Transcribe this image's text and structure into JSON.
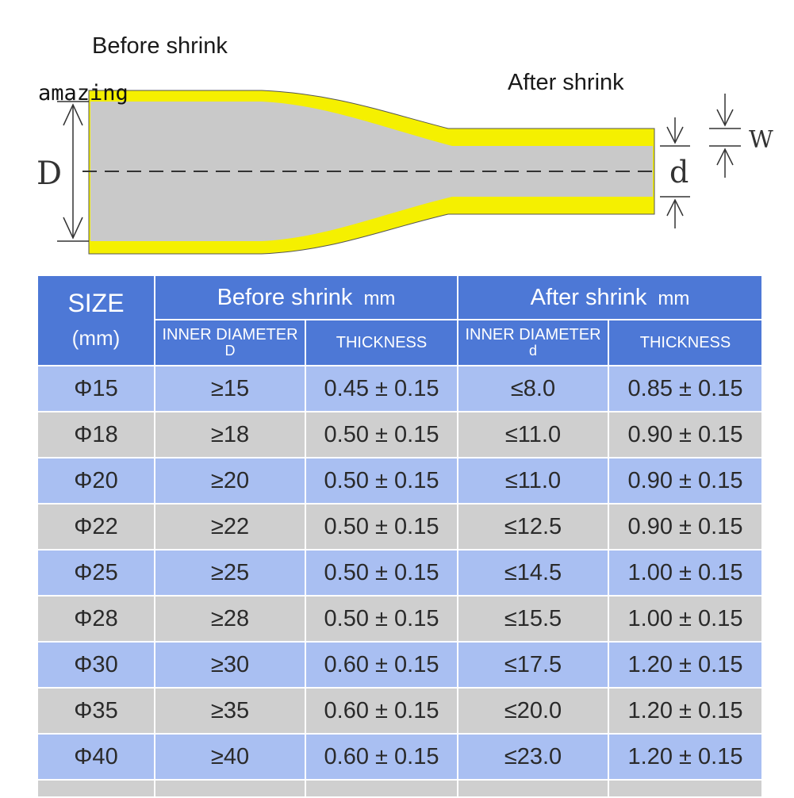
{
  "diagram": {
    "before_label": "Before  shrink",
    "after_label": "After shrink",
    "watermark": "amazing",
    "dim_D": "D",
    "dim_d": "d",
    "dim_w": "W",
    "tube_color": "#f5f000",
    "core_color": "#c9c9c9"
  },
  "table": {
    "header": {
      "size": "SIZE",
      "size_unit": "(mm)",
      "before": "Before  shrink",
      "before_unit": "mm",
      "after": "After shrink",
      "after_unit": "mm",
      "inner_diameter": "INNER DIAMETER",
      "inner_D": "D",
      "inner_d": "d",
      "thickness": "THICKNESS"
    },
    "rows": [
      {
        "size": "Φ15",
        "before_id": "≥15",
        "before_t": "0.45 ± 0.15",
        "after_id": "≤8.0",
        "after_t": "0.85 ± 0.15"
      },
      {
        "size": "Φ18",
        "before_id": "≥18",
        "before_t": "0.50 ± 0.15",
        "after_id": "≤11.0",
        "after_t": "0.90 ± 0.15"
      },
      {
        "size": "Φ20",
        "before_id": "≥20",
        "before_t": "0.50 ± 0.15",
        "after_id": "≤11.0",
        "after_t": "0.90 ± 0.15"
      },
      {
        "size": "Φ22",
        "before_id": "≥22",
        "before_t": "0.50 ± 0.15",
        "after_id": "≤12.5",
        "after_t": "0.90 ± 0.15"
      },
      {
        "size": "Φ25",
        "before_id": "≥25",
        "before_t": "0.50 ± 0.15",
        "after_id": "≤14.5",
        "after_t": "1.00 ± 0.15"
      },
      {
        "size": "Φ28",
        "before_id": "≥28",
        "before_t": "0.50 ± 0.15",
        "after_id": "≤15.5",
        "after_t": "1.00 ± 0.15"
      },
      {
        "size": "Φ30",
        "before_id": "≥30",
        "before_t": "0.60 ± 0.15",
        "after_id": "≤17.5",
        "after_t": "1.20 ± 0.15"
      },
      {
        "size": "Φ35",
        "before_id": "≥35",
        "before_t": "0.60 ± 0.15",
        "after_id": "≤20.0",
        "after_t": "1.20 ± 0.15"
      },
      {
        "size": "Φ40",
        "before_id": "≥40",
        "before_t": "0.60 ± 0.15",
        "after_id": "≤23.0",
        "after_t": "1.20 ± 0.15"
      }
    ]
  }
}
